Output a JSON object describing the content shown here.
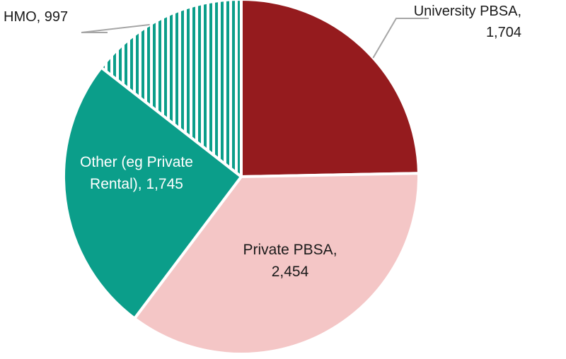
{
  "chart_data": {
    "type": "pie",
    "categories": [
      "University PBSA",
      "Private PBSA",
      "Other (eg Private Rental)",
      "HMO"
    ],
    "values": [
      1704,
      2454,
      1745,
      997
    ],
    "labels": [
      {
        "lines": [
          "University PBSA,",
          "1,704"
        ],
        "color": "#1a1a1a",
        "placement": "outside"
      },
      {
        "lines": [
          "Private PBSA,",
          "2,454"
        ],
        "color": "#1a1a1a",
        "placement": "inside"
      },
      {
        "lines": [
          "Other (eg Private",
          "Rental), 1,745"
        ],
        "color": "#ffffff",
        "placement": "inside"
      },
      {
        "lines": [
          "HMO,  997"
        ],
        "color": "#1a1a1a",
        "placement": "outside"
      }
    ],
    "colors": [
      "#951b1e",
      "#f4c6c6",
      "#0b9e8a",
      "#0b9e8a"
    ],
    "hatched": [
      false,
      false,
      false,
      true
    ],
    "hatch_color": "#0b9e8a",
    "leader_color": "#a6a6a6",
    "start_angle_deg": 0,
    "direction": "clockwise",
    "legend": "none"
  }
}
